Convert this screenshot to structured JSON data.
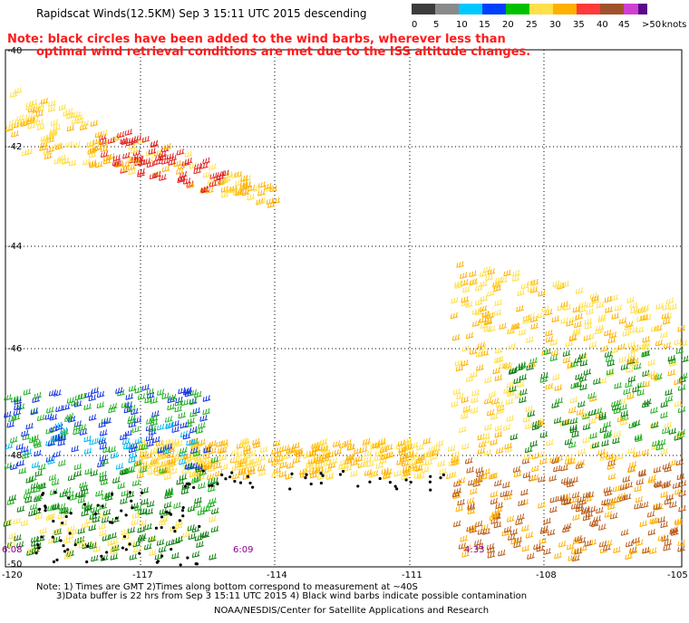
{
  "header": {
    "title": "Rapidscat Winds(12.5KM) Sep  3 15:11 UTC 2015 descending",
    "note_line1": "Note: black circles have been added to the wind barbs, wherever less than",
    "note_line2": "optimal wind retrieval conditions are met due to the ISS altitude changes."
  },
  "colorbar": {
    "unit": "knots",
    "labels": [
      "0",
      "5",
      "10",
      "15",
      "20",
      "25",
      "30",
      "35",
      "40",
      "45",
      ">50"
    ],
    "colors": [
      "#3c3c3c",
      "#8a8a8a",
      "#00c8ff",
      "#0040ff",
      "#00c000",
      "#ffe04a",
      "#ffb000",
      "#ff3a3a",
      "#a0522d",
      "#d040d0",
      "#5a0a8a"
    ]
  },
  "map": {
    "lat_labels": [
      "-40",
      "-42",
      "-44",
      "-46",
      "-48",
      "-50"
    ],
    "lon_labels": [
      "-120",
      "-117",
      "-114",
      "-111",
      "-108",
      "-105"
    ],
    "time_labels": [
      "6:08",
      "6:09",
      "4:33"
    ]
  },
  "footer": {
    "line1": "Note: 1) Times are GMT 2)Times along bottom correspond to measurement at ~40S",
    "line2": "3)Data buffer is 22 hrs from Sep  3 15:11 UTC 2015 4) Black wind barbs indicate possible contamination",
    "line3": "NOAA/NESDIS/Center for Satellite Applications and Research"
  }
}
